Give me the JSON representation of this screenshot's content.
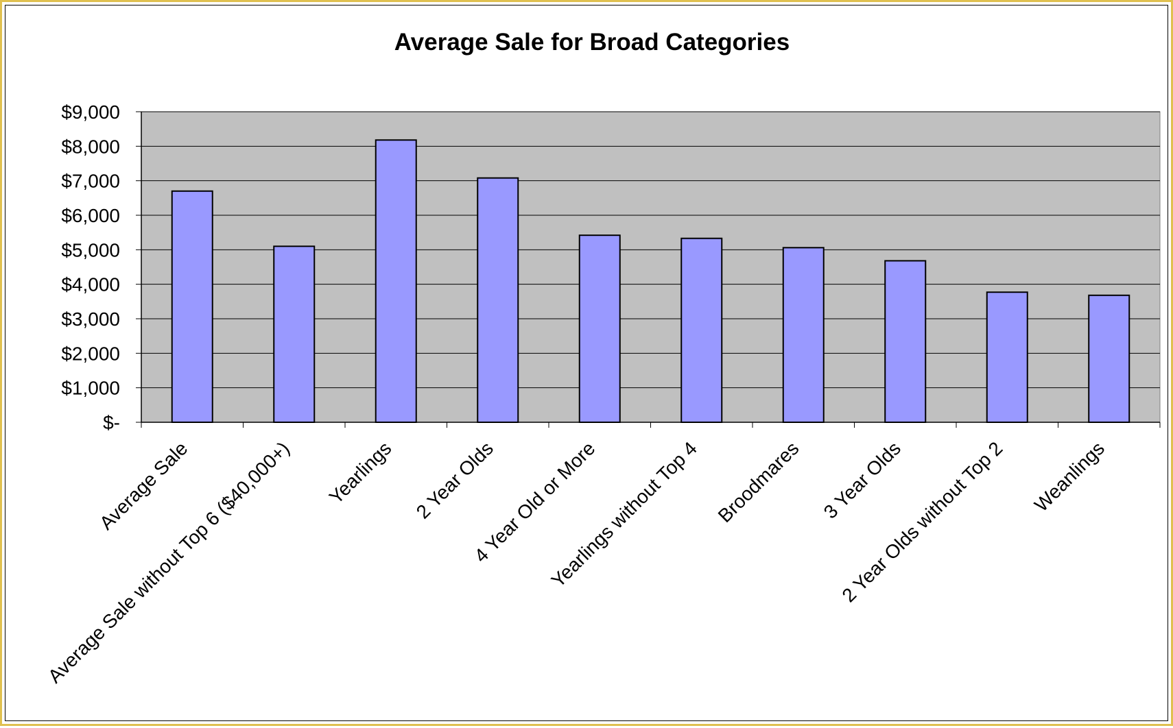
{
  "chart_data": {
    "type": "bar",
    "title": "Average Sale for Broad Categories",
    "xlabel": "",
    "ylabel": "",
    "ylim": [
      0,
      9000
    ],
    "grid": true,
    "legend": "none",
    "categories": [
      "Average Sale",
      "Average Sale without Top 6 ($40,000+)",
      "Yearlings",
      "2 Year Olds",
      "4 Year Old or More",
      "Yearlings without Top 4",
      "Broodmares",
      "3 Year Olds",
      "2 Year Olds without Top 2",
      "Weanlings"
    ],
    "values": [
      6700,
      5100,
      8180,
      7080,
      5420,
      5330,
      5060,
      4680,
      3770,
      3680
    ],
    "y_ticks": [
      {
        "value": 0,
        "label": "$-"
      },
      {
        "value": 1000,
        "label": "$1,000"
      },
      {
        "value": 2000,
        "label": "$2,000"
      },
      {
        "value": 3000,
        "label": "$3,000"
      },
      {
        "value": 4000,
        "label": "$4,000"
      },
      {
        "value": 5000,
        "label": "$5,000"
      },
      {
        "value": 6000,
        "label": "$6,000"
      },
      {
        "value": 7000,
        "label": "$7,000"
      },
      {
        "value": 8000,
        "label": "$8,000"
      },
      {
        "value": 9000,
        "label": "$9,000"
      }
    ],
    "colors": {
      "bar_fill": "#9999ff",
      "bar_stroke": "#000000",
      "plot_background": "#c0c0c0",
      "gridline": "#000000",
      "frame_border": "#e0c050"
    }
  }
}
